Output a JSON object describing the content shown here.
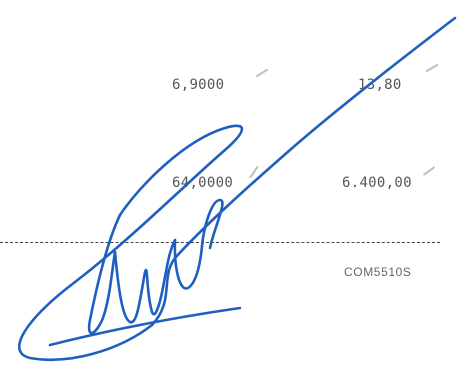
{
  "rows": [
    {
      "quantity": "6,9000",
      "total": "13,80"
    },
    {
      "quantity": "64,0000",
      "total": "6.400,00"
    }
  ],
  "footer_code": "COM5510S",
  "colors": {
    "ink": "#1f5fbf",
    "text": "#555555",
    "rule": "#444444",
    "check_mark": "#bdbdbd"
  }
}
